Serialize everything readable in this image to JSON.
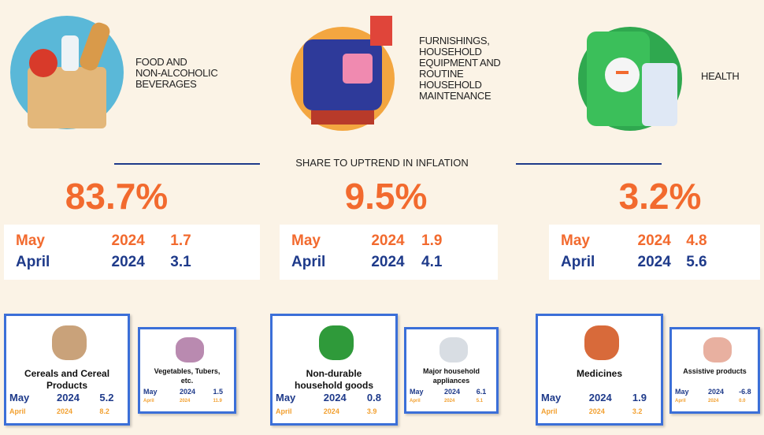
{
  "header": "SHARE TO UPTREND IN INFLATION",
  "columns": [
    {
      "label_lines": [
        "FOOD AND",
        "NON-ALCOHOLIC",
        "BEVERAGES"
      ],
      "share": "83.7%",
      "current": {
        "month": "May",
        "year": "2024",
        "value": "1.7"
      },
      "previous": {
        "month": "April",
        "year": "2024",
        "value": "3.1"
      },
      "items": [
        {
          "name_lines": [
            "Cereals and Cereal",
            "Products"
          ],
          "current": {
            "month": "May",
            "year": "2024",
            "value": "5.2"
          },
          "previous": {
            "month": "April",
            "year": "2024",
            "value": "8.2"
          }
        },
        {
          "name_lines": [
            "Vegetables, Tubers,",
            "etc."
          ],
          "current": {
            "month": "May",
            "year": "2024",
            "value": "1.5"
          },
          "previous": {
            "month": "April",
            "year": "2024",
            "value": "11.9"
          }
        }
      ]
    },
    {
      "label_lines": [
        "FURNISHINGS,",
        "HOUSEHOLD",
        "EQUIPMENT AND",
        "ROUTINE",
        "HOUSEHOLD",
        "MAINTENANCE"
      ],
      "share": "9.5%",
      "current": {
        "month": "May",
        "year": "2024",
        "value": "1.9"
      },
      "previous": {
        "month": "April",
        "year": "2024",
        "value": "4.1"
      },
      "items": [
        {
          "name_lines": [
            "Non-durable",
            "household goods"
          ],
          "current": {
            "month": "May",
            "year": "2024",
            "value": "0.8"
          },
          "previous": {
            "month": "April",
            "year": "2024",
            "value": "3.9"
          }
        },
        {
          "name_lines": [
            "Major household",
            "appliances"
          ],
          "current": {
            "month": "May",
            "year": "2024",
            "value": "6.1"
          },
          "previous": {
            "month": "April",
            "year": "2024",
            "value": "5.1"
          }
        }
      ]
    },
    {
      "label_lines": [
        "HEALTH"
      ],
      "share": "3.2%",
      "current": {
        "month": "May",
        "year": "2024",
        "value": "4.8"
      },
      "previous": {
        "month": "April",
        "year": "2024",
        "value": "5.6"
      },
      "items": [
        {
          "name_lines": [
            "Medicines"
          ],
          "current": {
            "month": "May",
            "year": "2024",
            "value": "1.9"
          },
          "previous": {
            "month": "April",
            "year": "2024",
            "value": "3.2"
          }
        },
        {
          "name_lines": [
            "Assistive products"
          ],
          "current": {
            "month": "May",
            "year": "2024",
            "value": "-6.8"
          },
          "previous": {
            "month": "April",
            "year": "2024",
            "value": "0.0"
          }
        }
      ]
    }
  ]
}
